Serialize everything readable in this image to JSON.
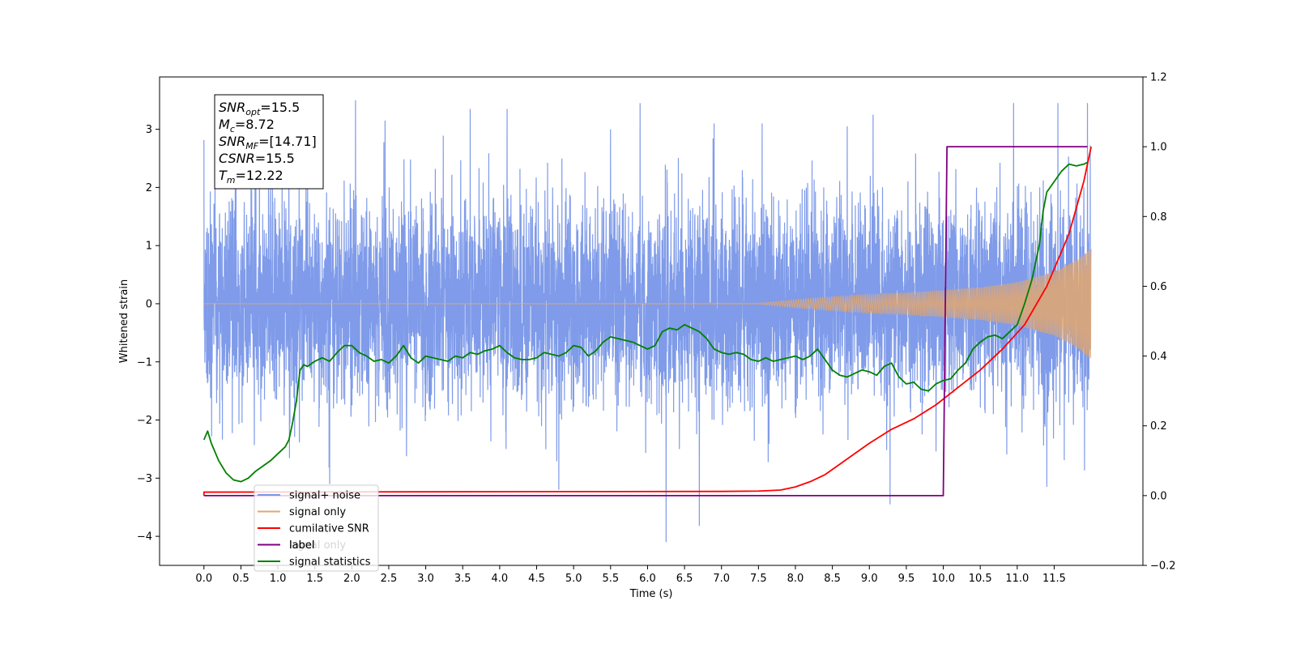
{
  "chart_data": {
    "type": "line",
    "xlabel": "Time (s)",
    "ylabel_left": "Whitened strain",
    "ylabel_right": "",
    "xlim": [
      -0.6,
      12.7
    ],
    "ylim_left": [
      -4.5,
      3.9
    ],
    "ylim_right": [
      -0.2,
      1.2
    ],
    "x_ticks": [
      0.0,
      0.5,
      1.0,
      1.5,
      2.0,
      2.5,
      3.0,
      3.5,
      4.0,
      4.5,
      5.0,
      5.5,
      6.0,
      6.5,
      7.0,
      7.5,
      8.0,
      8.5,
      9.0,
      9.5,
      10.0,
      10.5,
      11.0,
      11.5
    ],
    "x_tick_labels": [
      "0.0",
      "0.5",
      "1.0",
      "1.5",
      "2.0",
      "2.5",
      "3.0",
      "3.5",
      "4.0",
      "4.5",
      "5.0",
      "5.5",
      "6.0",
      "6.5",
      "7.0",
      "7.5",
      "8.0",
      "8.5",
      "9.0",
      "9.5",
      "10.0",
      "10.5",
      "11.0",
      "11.5"
    ],
    "y_left_ticks": [
      -4,
      -3,
      -2,
      -1,
      0,
      1,
      2,
      3
    ],
    "y_left_tick_labels": [
      "−4",
      "−3",
      "−2",
      "−1",
      "0",
      "1",
      "2",
      "3"
    ],
    "y_right_ticks": [
      -0.2,
      0.0,
      0.2,
      0.4,
      0.6,
      0.8,
      1.0,
      1.2
    ],
    "y_right_tick_labels": [
      "−0.2",
      "0.0",
      "0.2",
      "0.4",
      "0.6",
      "0.8",
      "1.0",
      "1.2"
    ],
    "grid": false,
    "legend_position": "bottom-left",
    "annotation": [
      {
        "sym": "SNR",
        "sub": "opt",
        "val": "=15.5"
      },
      {
        "sym": "M",
        "sub": "c",
        "val": "=8.72"
      },
      {
        "sym": "SNR",
        "sub": "MF",
        "val": "=[14.71]"
      },
      {
        "sym": "CSNR",
        "sub": "",
        "val": "=15.5"
      },
      {
        "sym": "T",
        "sub": "m",
        "val": "=12.22"
      }
    ],
    "series": [
      {
        "name": "signal+ noise",
        "axis": "left",
        "color": "#7896e8",
        "description_noise": {
          "t_start": 0.0,
          "t_end": 11.99,
          "noise_std": 0.9,
          "seed": 7
        },
        "peaks": [
          [
            0.15,
            2.75
          ],
          [
            1.15,
            3.3
          ],
          [
            2.05,
            3.5
          ],
          [
            2.45,
            3.15
          ],
          [
            3.6,
            3.35
          ],
          [
            4.1,
            3.35
          ],
          [
            5.5,
            3.0
          ],
          [
            5.9,
            3.45
          ],
          [
            6.9,
            3.1
          ],
          [
            7.55,
            3.1
          ],
          [
            8.7,
            3.05
          ],
          [
            9.05,
            3.25
          ],
          [
            10.95,
            3.45
          ],
          [
            11.55,
            3.45
          ],
          [
            11.95,
            3.45
          ],
          [
            6.25,
            -4.1
          ],
          [
            6.7,
            -3.82
          ],
          [
            9.28,
            -3.45
          ],
          [
            4.8,
            -3.2
          ],
          [
            1.7,
            -3.1
          ],
          [
            11.4,
            -3.15
          ]
        ]
      },
      {
        "name": "signal only",
        "axis": "left",
        "color": "#e3a76e",
        "envelope": [
          [
            0.0,
            0.0
          ],
          [
            7.5,
            0.01
          ],
          [
            8.0,
            0.07
          ],
          [
            8.5,
            0.12
          ],
          [
            9.0,
            0.16
          ],
          [
            9.5,
            0.19
          ],
          [
            10.0,
            0.23
          ],
          [
            10.5,
            0.28
          ],
          [
            11.0,
            0.37
          ],
          [
            11.5,
            0.55
          ],
          [
            11.8,
            0.75
          ],
          [
            12.0,
            0.95
          ]
        ]
      },
      {
        "name": "cumilative SNR",
        "axis": "right",
        "color": "#ff0000",
        "points": [
          [
            0.0,
            0.0
          ],
          [
            0.0,
            0.01
          ],
          [
            7.0,
            0.012
          ],
          [
            7.5,
            0.013
          ],
          [
            7.8,
            0.016
          ],
          [
            8.0,
            0.025
          ],
          [
            8.2,
            0.04
          ],
          [
            8.4,
            0.06
          ],
          [
            8.6,
            0.09
          ],
          [
            8.8,
            0.12
          ],
          [
            9.0,
            0.15
          ],
          [
            9.3,
            0.19
          ],
          [
            9.6,
            0.22
          ],
          [
            9.9,
            0.26
          ],
          [
            10.2,
            0.31
          ],
          [
            10.5,
            0.36
          ],
          [
            10.8,
            0.42
          ],
          [
            11.1,
            0.49
          ],
          [
            11.4,
            0.6
          ],
          [
            11.7,
            0.75
          ],
          [
            11.9,
            0.9
          ],
          [
            12.0,
            1.0
          ]
        ]
      },
      {
        "name": "label",
        "axis": "right",
        "color": "#800080",
        "points": [
          [
            0.0,
            0.0
          ],
          [
            10.0,
            0.0
          ],
          [
            10.05,
            1.0
          ],
          [
            11.95,
            1.0
          ]
        ]
      },
      {
        "name": "signal statistics",
        "axis": "right",
        "color": "#008000",
        "points": [
          [
            0.0,
            0.16
          ],
          [
            0.05,
            0.185
          ],
          [
            0.1,
            0.15
          ],
          [
            0.2,
            0.1
          ],
          [
            0.3,
            0.065
          ],
          [
            0.4,
            0.045
          ],
          [
            0.5,
            0.04
          ],
          [
            0.6,
            0.05
          ],
          [
            0.7,
            0.07
          ],
          [
            0.8,
            0.085
          ],
          [
            0.9,
            0.1
          ],
          [
            1.0,
            0.12
          ],
          [
            1.1,
            0.14
          ],
          [
            1.15,
            0.16
          ],
          [
            1.2,
            0.21
          ],
          [
            1.25,
            0.27
          ],
          [
            1.3,
            0.36
          ],
          [
            1.35,
            0.375
          ],
          [
            1.4,
            0.37
          ],
          [
            1.5,
            0.385
          ],
          [
            1.6,
            0.395
          ],
          [
            1.7,
            0.385
          ],
          [
            1.8,
            0.41
          ],
          [
            1.9,
            0.43
          ],
          [
            2.0,
            0.43
          ],
          [
            2.05,
            0.42
          ],
          [
            2.1,
            0.41
          ],
          [
            2.2,
            0.4
          ],
          [
            2.3,
            0.385
          ],
          [
            2.4,
            0.39
          ],
          [
            2.5,
            0.38
          ],
          [
            2.6,
            0.4
          ],
          [
            2.7,
            0.43
          ],
          [
            2.8,
            0.395
          ],
          [
            2.9,
            0.38
          ],
          [
            3.0,
            0.4
          ],
          [
            3.1,
            0.395
          ],
          [
            3.2,
            0.39
          ],
          [
            3.3,
            0.385
          ],
          [
            3.4,
            0.4
          ],
          [
            3.5,
            0.395
          ],
          [
            3.6,
            0.41
          ],
          [
            3.7,
            0.405
          ],
          [
            3.8,
            0.415
          ],
          [
            3.9,
            0.42
          ],
          [
            4.0,
            0.43
          ],
          [
            4.1,
            0.41
          ],
          [
            4.2,
            0.395
          ],
          [
            4.3,
            0.39
          ],
          [
            4.4,
            0.39
          ],
          [
            4.5,
            0.395
          ],
          [
            4.6,
            0.41
          ],
          [
            4.7,
            0.405
          ],
          [
            4.8,
            0.4
          ],
          [
            4.9,
            0.41
          ],
          [
            5.0,
            0.43
          ],
          [
            5.1,
            0.425
          ],
          [
            5.2,
            0.4
          ],
          [
            5.3,
            0.415
          ],
          [
            5.4,
            0.44
          ],
          [
            5.5,
            0.455
          ],
          [
            5.6,
            0.45
          ],
          [
            5.7,
            0.445
          ],
          [
            5.8,
            0.44
          ],
          [
            5.9,
            0.43
          ],
          [
            6.0,
            0.42
          ],
          [
            6.1,
            0.43
          ],
          [
            6.2,
            0.47
          ],
          [
            6.3,
            0.48
          ],
          [
            6.4,
            0.475
          ],
          [
            6.5,
            0.49
          ],
          [
            6.6,
            0.48
          ],
          [
            6.7,
            0.47
          ],
          [
            6.8,
            0.45
          ],
          [
            6.9,
            0.42
          ],
          [
            7.0,
            0.41
          ],
          [
            7.1,
            0.405
          ],
          [
            7.2,
            0.41
          ],
          [
            7.3,
            0.405
          ],
          [
            7.4,
            0.39
          ],
          [
            7.5,
            0.385
          ],
          [
            7.6,
            0.395
          ],
          [
            7.7,
            0.385
          ],
          [
            7.8,
            0.39
          ],
          [
            7.9,
            0.395
          ],
          [
            8.0,
            0.4
          ],
          [
            8.1,
            0.39
          ],
          [
            8.2,
            0.4
          ],
          [
            8.3,
            0.42
          ],
          [
            8.4,
            0.39
          ],
          [
            8.5,
            0.36
          ],
          [
            8.6,
            0.345
          ],
          [
            8.7,
            0.34
          ],
          [
            8.8,
            0.35
          ],
          [
            8.9,
            0.36
          ],
          [
            9.0,
            0.355
          ],
          [
            9.1,
            0.345
          ],
          [
            9.2,
            0.37
          ],
          [
            9.3,
            0.38
          ],
          [
            9.4,
            0.34
          ],
          [
            9.5,
            0.32
          ],
          [
            9.6,
            0.325
          ],
          [
            9.7,
            0.305
          ],
          [
            9.8,
            0.3
          ],
          [
            9.9,
            0.32
          ],
          [
            10.0,
            0.33
          ],
          [
            10.1,
            0.335
          ],
          [
            10.2,
            0.36
          ],
          [
            10.3,
            0.38
          ],
          [
            10.4,
            0.42
          ],
          [
            10.5,
            0.44
          ],
          [
            10.6,
            0.455
          ],
          [
            10.7,
            0.46
          ],
          [
            10.8,
            0.45
          ],
          [
            10.9,
            0.47
          ],
          [
            11.0,
            0.49
          ],
          [
            11.1,
            0.55
          ],
          [
            11.2,
            0.62
          ],
          [
            11.3,
            0.72
          ],
          [
            11.35,
            0.815
          ],
          [
            11.4,
            0.87
          ],
          [
            11.5,
            0.9
          ],
          [
            11.6,
            0.93
          ],
          [
            11.7,
            0.95
          ],
          [
            11.8,
            0.945
          ],
          [
            11.9,
            0.95
          ],
          [
            11.95,
            0.955
          ]
        ]
      }
    ],
    "legend": [
      "signal+ noise",
      "signal only",
      "cumilative SNR",
      "label",
      "signal statistics"
    ],
    "legend_overlap_text": "signal only"
  }
}
